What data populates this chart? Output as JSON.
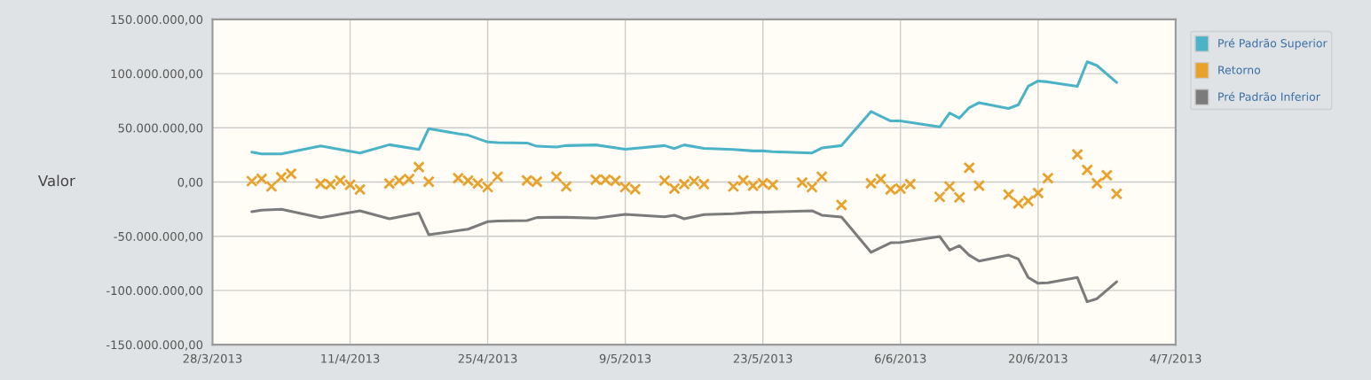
{
  "chart_data": {
    "type": "line",
    "ylabel": "Valor",
    "xlim": [
      "2013-03-28",
      "2013-07-04"
    ],
    "xticks": [
      {
        "value": "2013-03-28",
        "label": "28/3/2013"
      },
      {
        "value": "2013-04-11",
        "label": "11/4/2013"
      },
      {
        "value": "2013-04-25",
        "label": "25/4/2013"
      },
      {
        "value": "2013-05-09",
        "label": "9/5/2013"
      },
      {
        "value": "2013-05-23",
        "label": "23/5/2013"
      },
      {
        "value": "2013-06-06",
        "label": "6/6/2013"
      },
      {
        "value": "2013-06-20",
        "label": "20/6/2013"
      },
      {
        "value": "2013-07-04",
        "label": "4/7/2013"
      }
    ],
    "ylim": [
      -150000000,
      150000000
    ],
    "yticks": [
      {
        "value": -150000000,
        "label": "-150.000.000,00"
      },
      {
        "value": -100000000,
        "label": "-100.000.000,00"
      },
      {
        "value": -50000000,
        "label": "-50.000.000,00"
      },
      {
        "value": 0,
        "label": "0,00"
      },
      {
        "value": 50000000,
        "label": "50.000.000,00"
      },
      {
        "value": 100000000,
        "label": "100.000.000,00"
      },
      {
        "value": 150000000,
        "label": "150.000.000,00"
      }
    ],
    "grid": true,
    "legend": "right",
    "series": [
      {
        "name": "Pré Padrão Superior",
        "color": "#4ab3c7",
        "x": [
          "2013-04-01",
          "2013-04-02",
          "2013-04-04",
          "2013-04-08",
          "2013-04-12",
          "2013-04-15",
          "2013-04-18",
          "2013-04-19",
          "2013-04-22",
          "2013-04-23",
          "2013-04-25",
          "2013-04-26",
          "2013-04-29",
          "2013-04-30",
          "2013-05-02",
          "2013-05-03",
          "2013-05-06",
          "2013-05-09",
          "2013-05-13",
          "2013-05-14",
          "2013-05-15",
          "2013-05-17",
          "2013-05-20",
          "2013-05-22",
          "2013-05-23",
          "2013-05-24",
          "2013-05-28",
          "2013-05-29",
          "2013-05-31",
          "2013-06-03",
          "2013-06-05",
          "2013-06-06",
          "2013-06-10",
          "2013-06-11",
          "2013-06-12",
          "2013-06-13",
          "2013-06-14",
          "2013-06-17",
          "2013-06-18",
          "2013-06-19",
          "2013-06-20",
          "2013-06-21",
          "2013-06-24",
          "2013-06-25",
          "2013-06-26",
          "2013-06-28"
        ],
        "values": [
          27600000,
          26000000,
          26000000,
          33300000,
          26800000,
          34400000,
          30000000,
          49200000,
          44500000,
          43200000,
          36900000,
          36300000,
          36000000,
          33000000,
          32200000,
          33600000,
          34200000,
          30300000,
          33600000,
          30900000,
          34200000,
          31100000,
          30000000,
          28700000,
          28700000,
          27900000,
          26800000,
          31400000,
          33600000,
          65000000,
          56300000,
          56300000,
          50800000,
          63700000,
          59000000,
          68600000,
          73200000,
          67800000,
          71300000,
          88300000,
          93200000,
          92400000,
          88300000,
          110900000,
          107400000,
          91800000
        ]
      },
      {
        "name": "Retorno",
        "type": "scatter",
        "marker": "cross",
        "color": "#e8a22c",
        "x": [
          "2013-04-01",
          "2013-04-02",
          "2013-04-03",
          "2013-04-04",
          "2013-04-05",
          "2013-04-08",
          "2013-04-09",
          "2013-04-10",
          "2013-04-11",
          "2013-04-12",
          "2013-04-15",
          "2013-04-16",
          "2013-04-17",
          "2013-04-18",
          "2013-04-19",
          "2013-04-22",
          "2013-04-23",
          "2013-04-24",
          "2013-04-25",
          "2013-04-26",
          "2013-04-29",
          "2013-04-30",
          "2013-05-02",
          "2013-05-03",
          "2013-05-06",
          "2013-05-07",
          "2013-05-08",
          "2013-05-09",
          "2013-05-10",
          "2013-05-13",
          "2013-05-14",
          "2013-05-15",
          "2013-05-16",
          "2013-05-17",
          "2013-05-20",
          "2013-05-21",
          "2013-05-22",
          "2013-05-23",
          "2013-05-24",
          "2013-05-27",
          "2013-05-28",
          "2013-05-29",
          "2013-05-31",
          "2013-06-03",
          "2013-06-04",
          "2013-06-05",
          "2013-06-06",
          "2013-06-07",
          "2013-06-10",
          "2013-06-11",
          "2013-06-12",
          "2013-06-13",
          "2013-06-14",
          "2013-06-17",
          "2013-06-18",
          "2013-06-19",
          "2013-06-20",
          "2013-06-21",
          "2013-06-24",
          "2013-06-25",
          "2013-06-26",
          "2013-06-27",
          "2013-06-28"
        ],
        "values": [
          800000,
          3000000,
          -4100000,
          4300000,
          7600000,
          -1600000,
          -2200000,
          1400000,
          -2500000,
          -6800000,
          -1400000,
          1400000,
          2700000,
          13700000,
          300000,
          3500000,
          1400000,
          -1400000,
          -4700000,
          4900000,
          1600000,
          300000,
          4900000,
          -4100000,
          2200000,
          2200000,
          1100000,
          -4700000,
          -6600000,
          1400000,
          -6000000,
          -1900000,
          800000,
          -1900000,
          -4100000,
          1600000,
          -3300000,
          -1100000,
          -2500000,
          -500000,
          -4700000,
          4900000,
          -21100000,
          -1100000,
          2700000,
          -6800000,
          -6000000,
          -1900000,
          -13700000,
          -4100000,
          -14200000,
          13100000,
          -3300000,
          -11500000,
          -19700000,
          -17500000,
          -10100000,
          3500000,
          25400000,
          11200000,
          -1100000,
          6300000,
          -10900000
        ]
      },
      {
        "name": "Pré Padrão Inferior",
        "color": "#7b7b7b",
        "x": [
          "2013-04-01",
          "2013-04-02",
          "2013-04-04",
          "2013-04-08",
          "2013-04-12",
          "2013-04-15",
          "2013-04-18",
          "2013-04-19",
          "2013-04-22",
          "2013-04-23",
          "2013-04-25",
          "2013-04-26",
          "2013-04-29",
          "2013-04-30",
          "2013-05-02",
          "2013-05-03",
          "2013-05-06",
          "2013-05-09",
          "2013-05-13",
          "2013-05-14",
          "2013-05-15",
          "2013-05-17",
          "2013-05-20",
          "2013-05-22",
          "2013-05-23",
          "2013-05-24",
          "2013-05-28",
          "2013-05-29",
          "2013-05-31",
          "2013-06-03",
          "2013-06-05",
          "2013-06-06",
          "2013-06-10",
          "2013-06-11",
          "2013-06-12",
          "2013-06-13",
          "2013-06-14",
          "2013-06-17",
          "2013-06-18",
          "2013-06-19",
          "2013-06-20",
          "2013-06-21",
          "2013-06-24",
          "2013-06-25",
          "2013-06-26",
          "2013-06-28"
        ],
        "values": [
          -27300000,
          -26000000,
          -25200000,
          -32800000,
          -26500000,
          -33900000,
          -28700000,
          -48600000,
          -44800000,
          -43500000,
          -36600000,
          -36000000,
          -35500000,
          -32800000,
          -32500000,
          -32600000,
          -33300000,
          -29800000,
          -32000000,
          -30600000,
          -33900000,
          -30100000,
          -29200000,
          -27900000,
          -27900000,
          -27500000,
          -26500000,
          -30600000,
          -32200000,
          -64800000,
          -56000000,
          -55700000,
          -50300000,
          -62800000,
          -58800000,
          -67500000,
          -72900000,
          -67500000,
          -71000000,
          -88000000,
          -93400000,
          -92900000,
          -88000000,
          -110400000,
          -107600000,
          -92000000
        ]
      }
    ]
  }
}
